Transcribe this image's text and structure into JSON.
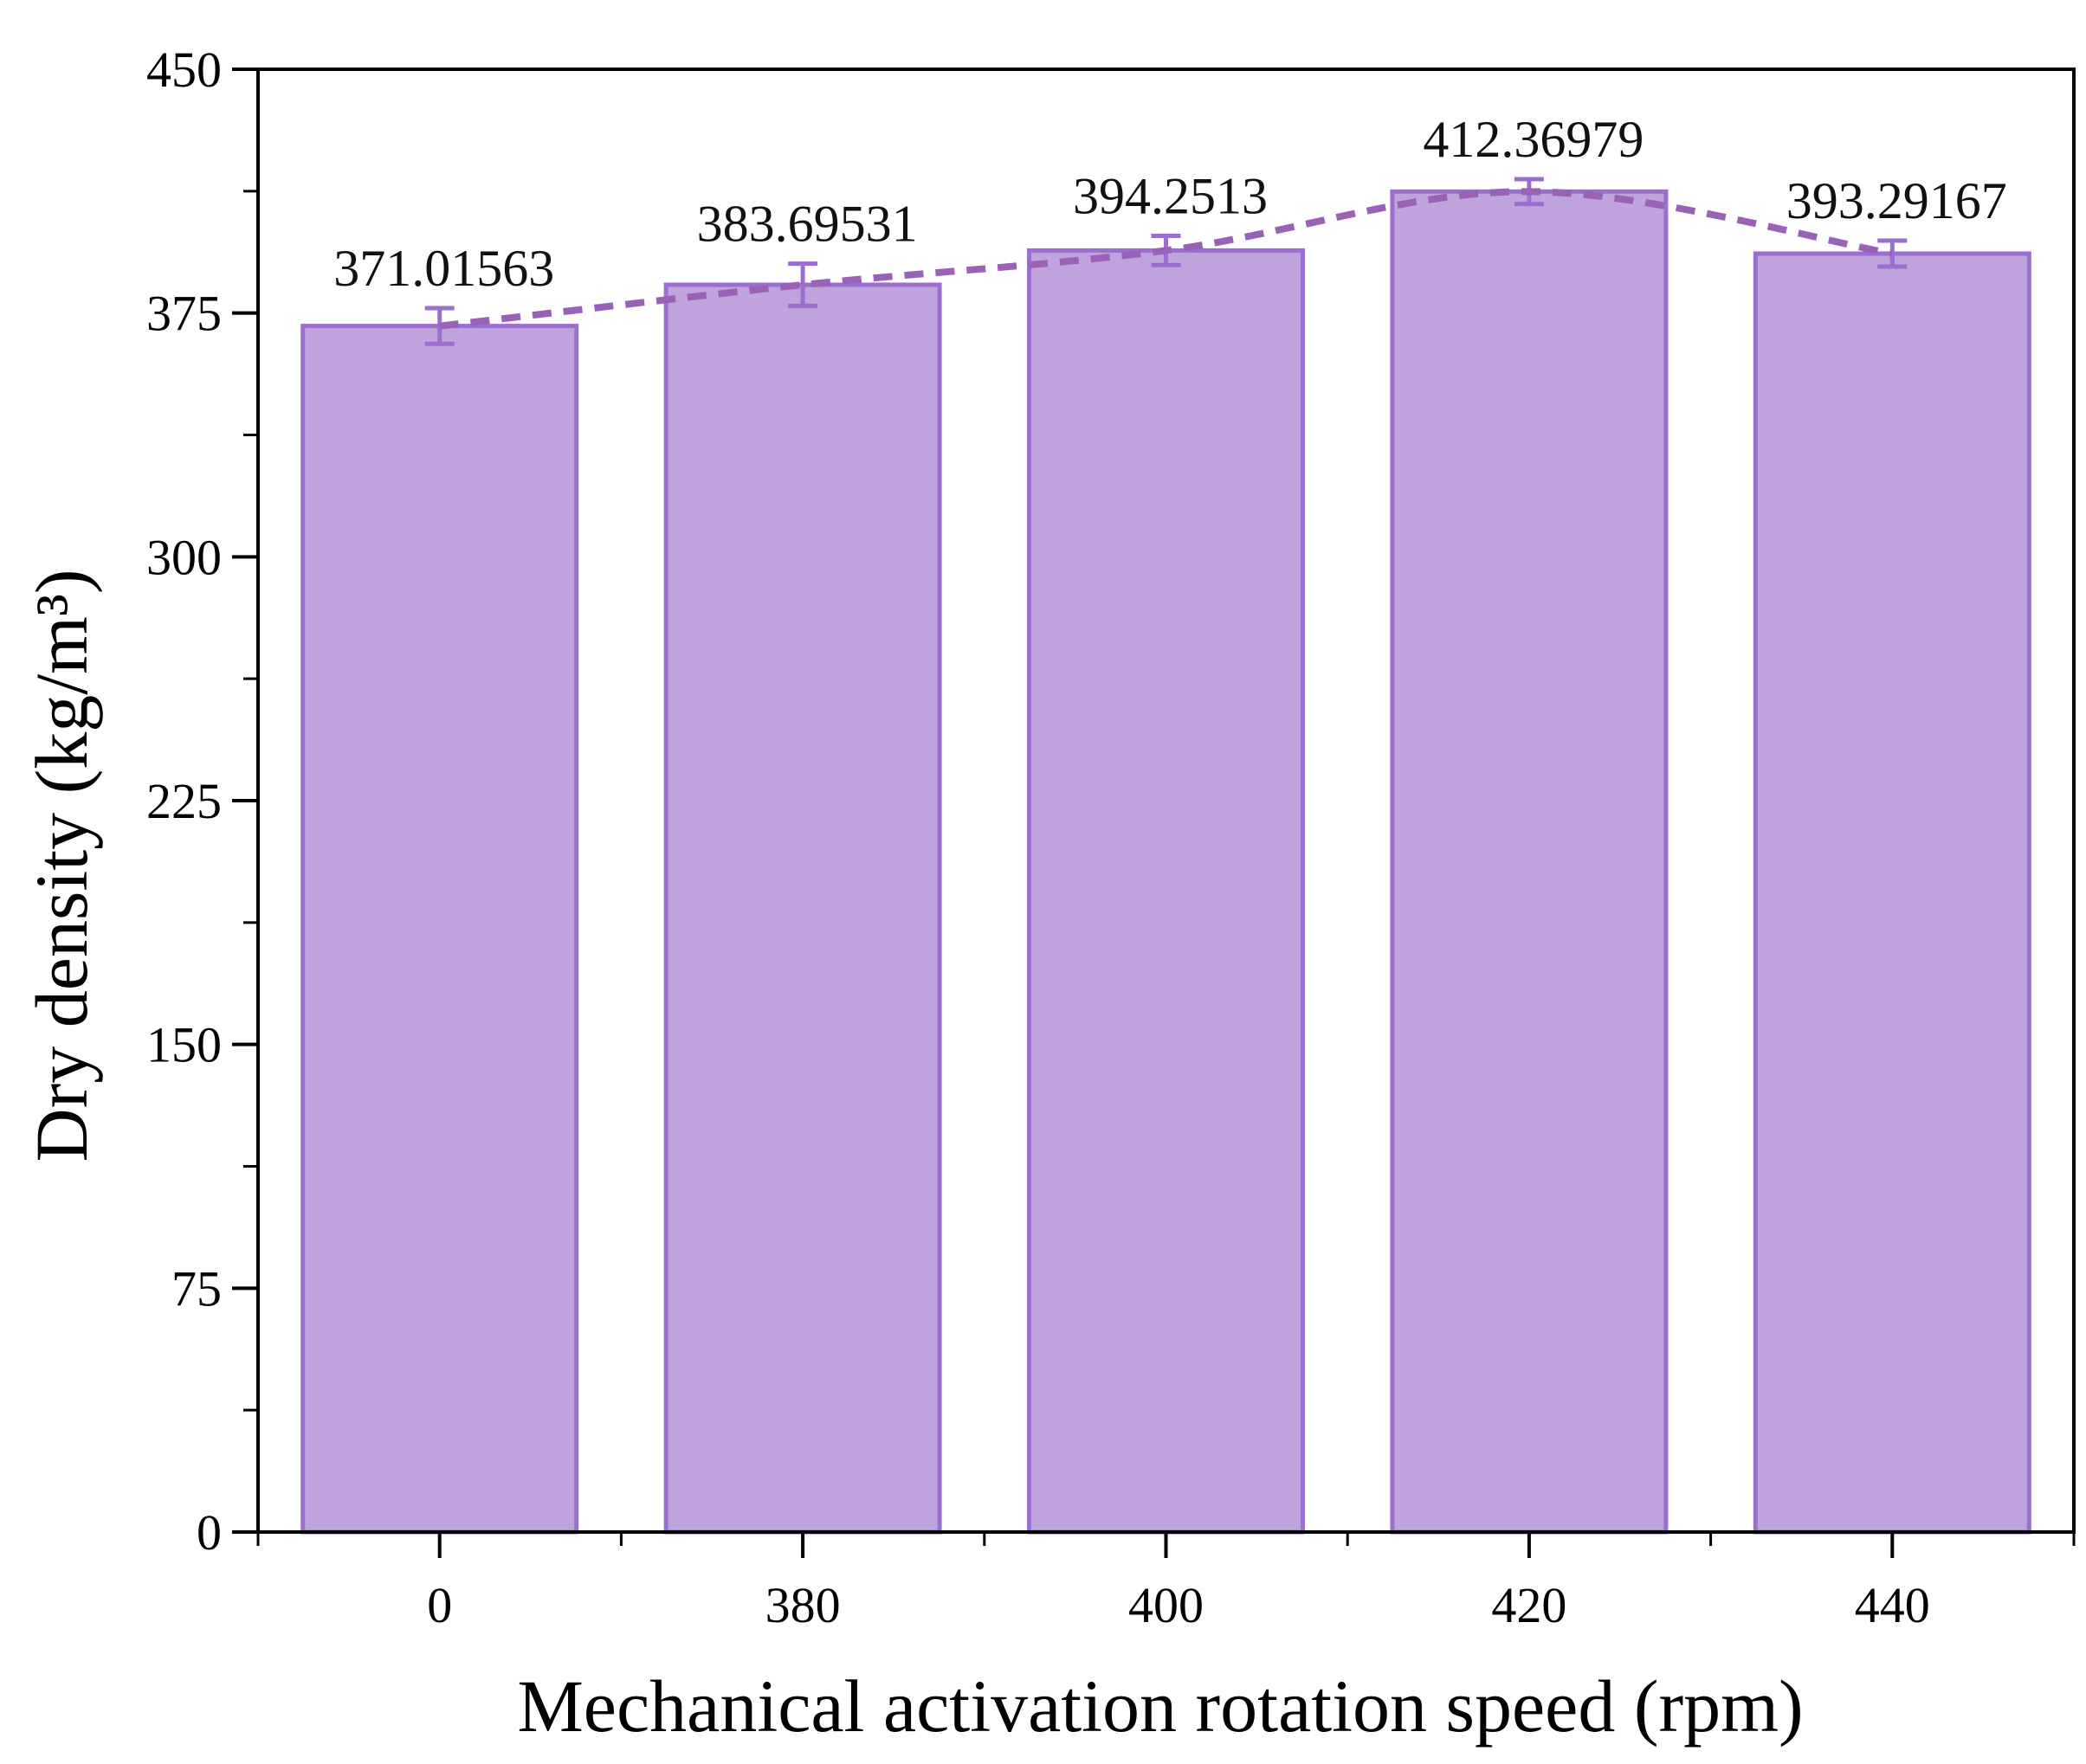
{
  "chart_data": {
    "type": "bar",
    "xlabel": "Mechanical activation rotation speed (rpm)",
    "ylabel": "Dry density (kg/m³)",
    "categories": [
      "0",
      "380",
      "400",
      "420",
      "440"
    ],
    "values": [
      371.01563,
      383.69531,
      394.2513,
      412.36979,
      393.29167
    ],
    "value_labels": [
      "371.01563",
      "383.69531",
      "394.2513",
      "412.36979",
      "393.29167"
    ],
    "error": [
      5.5,
      6.5,
      4.5,
      3.8,
      4.0
    ],
    "ylim": [
      0,
      450
    ],
    "yticks": [
      0,
      75,
      150,
      225,
      300,
      375,
      450
    ],
    "trend_line": "dashed",
    "grid": false,
    "colors": {
      "bar_fill": "#bea3dc",
      "bar_edge": "#9b6fcf",
      "trend": "#9a62b6",
      "axis": "#000000"
    }
  }
}
